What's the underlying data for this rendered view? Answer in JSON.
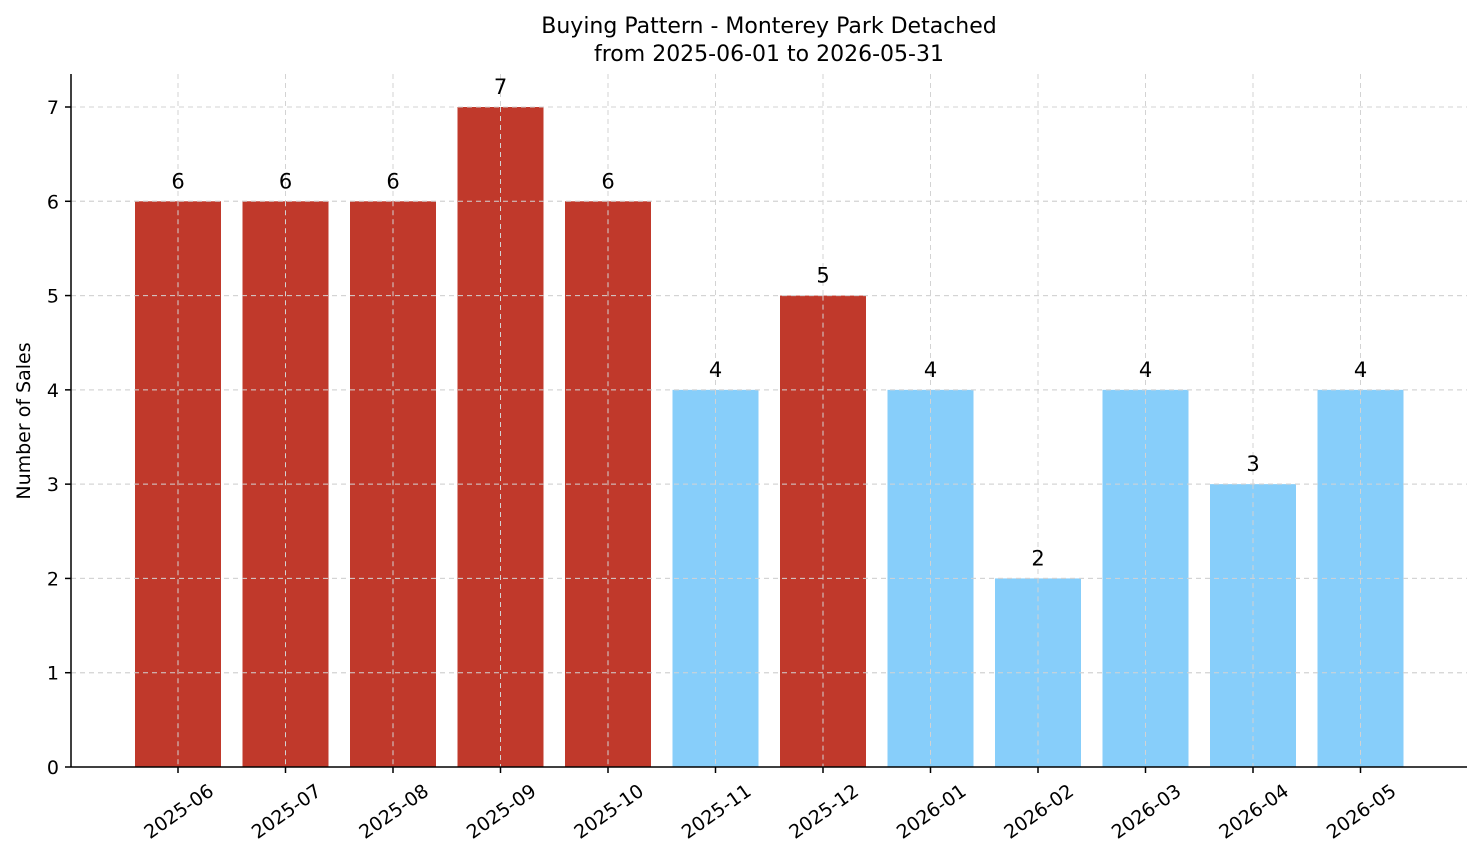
{
  "chart_data": {
    "type": "bar",
    "title": "Buying Pattern - Monterey Park Detached",
    "subtitle": "from 2025-06-01 to 2026-05-31",
    "xlabel": "",
    "ylabel": "Number of Sales",
    "categories": [
      "2025-06",
      "2025-07",
      "2025-08",
      "2025-09",
      "2025-10",
      "2025-11",
      "2025-12",
      "2026-01",
      "2026-02",
      "2026-03",
      "2026-04",
      "2026-05"
    ],
    "values": [
      6,
      6,
      6,
      7,
      6,
      4,
      5,
      4,
      2,
      4,
      3,
      4
    ],
    "bar_colors": [
      "#c0392b",
      "#c0392b",
      "#c0392b",
      "#c0392b",
      "#c0392b",
      "#87cefa",
      "#c0392b",
      "#87cefa",
      "#87cefa",
      "#87cefa",
      "#87cefa",
      "#87cefa"
    ],
    "ylim": [
      0,
      7.35
    ],
    "yticks": [
      0,
      1,
      2,
      3,
      4,
      5,
      6,
      7
    ],
    "grid": true
  }
}
